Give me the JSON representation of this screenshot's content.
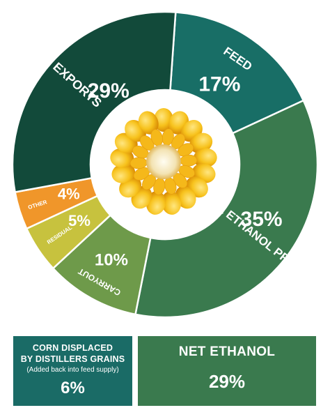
{
  "chart_data": {
    "type": "pie",
    "style": "donut",
    "slices": [
      {
        "label": "FEED",
        "value": 17,
        "value_label": "17%",
        "color": "#186e66"
      },
      {
        "label": "TOTAL ETHANOL PROCESSING",
        "value": 35,
        "value_label": "35%",
        "color": "#3a7a4e"
      },
      {
        "label": "CARRYOUT",
        "value": 10,
        "value_label": "10%",
        "color": "#6e9a4a"
      },
      {
        "label": "RESIDUAL",
        "value": 5,
        "value_label": "5%",
        "color": "#c7c23e"
      },
      {
        "label": "OTHER",
        "value": 4,
        "value_label": "4%",
        "color": "#f0962a"
      },
      {
        "label": "EXPORTS",
        "value": 29,
        "value_label": "29%",
        "color": "#124a3a"
      }
    ],
    "center_image": "corn-cob-cross-section"
  },
  "boxes": {
    "corn_displaced": {
      "title_line1": "CORN DISPLACED",
      "title_line2": "BY DISTILLERS GRAINS",
      "note": "(Added back into feed supply)",
      "value_label": "6%",
      "color": "#1a6b66"
    },
    "net_ethanol": {
      "title": "NET ETHANOL",
      "value_label": "29%",
      "color": "#3a7a4e"
    }
  }
}
